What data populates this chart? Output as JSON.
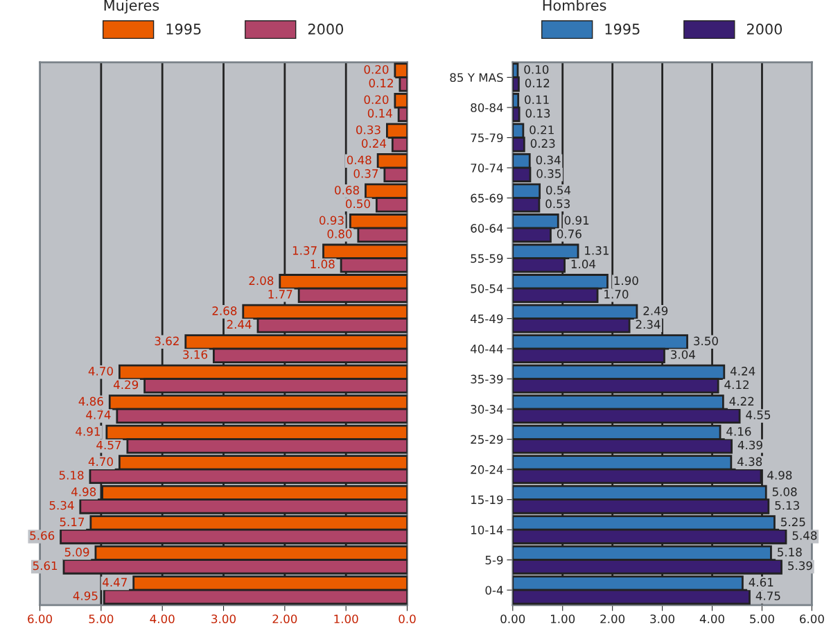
{
  "chart_data": [
    {
      "type": "bar",
      "orientation": "horizontal",
      "legend_title": "Mujeres",
      "legend": "top",
      "grid": "x",
      "tick_labels": "x",
      "categories": [
        null,
        null,
        null,
        null,
        null,
        null,
        null,
        null,
        null,
        null,
        null,
        null,
        null,
        null,
        null,
        null,
        null,
        null
      ],
      "xlim": [
        6,
        0
      ],
      "xticks": [
        {
          "value": 6,
          "label": "6.00"
        },
        {
          "value": 5,
          "label": "5.00"
        },
        {
          "value": 4,
          "label": "4.00"
        },
        {
          "value": 3,
          "label": "3.00"
        },
        {
          "value": 2,
          "label": "2.00"
        },
        {
          "value": 1,
          "label": "1.00"
        },
        {
          "value": 0,
          "label": "0.0"
        }
      ],
      "series": [
        {
          "name": "1995",
          "color": "#ea5c00",
          "values": [
            0.2,
            0.2,
            0.33,
            0.48,
            0.68,
            0.93,
            1.37,
            2.08,
            2.68,
            3.62,
            4.7,
            4.86,
            4.91,
            4.7,
            4.98,
            5.17,
            5.09,
            4.47
          ],
          "value_labels": [
            "0.20",
            "0.20",
            "0.33",
            "0.48",
            "0.68",
            "0.93",
            "1.37",
            "2.08",
            "2.68",
            "3.62",
            "4.70",
            "4.86",
            "4.91",
            "4.70",
            "4.98",
            "5.17",
            "5.09",
            "4.47"
          ]
        },
        {
          "name": "2000",
          "color": "#b04468",
          "values": [
            0.12,
            0.14,
            0.24,
            0.37,
            0.5,
            0.8,
            1.08,
            1.77,
            2.44,
            3.16,
            4.29,
            4.74,
            4.57,
            5.18,
            5.34,
            5.66,
            5.61,
            4.95
          ],
          "value_labels": [
            "0.12",
            "0.14",
            "0.24",
            "0.37",
            "0.50",
            "0.80",
            "1.08",
            "1.77",
            "2.44",
            "3.16",
            "4.29",
            "4.74",
            "4.57",
            "5.18",
            "5.34",
            "5.66",
            "5.61",
            "4.95"
          ]
        }
      ]
    },
    {
      "type": "bar",
      "orientation": "horizontal",
      "legend_title": "Hombres",
      "legend": "top",
      "grid": "x",
      "categories": [
        "85 Y MAS",
        "80-84",
        "75-79",
        "70-74",
        "65-69",
        "60-64",
        "55-59",
        "50-54",
        "45-49",
        "40-44",
        "35-39",
        "30-34",
        "25-29",
        "20-24",
        "15-19",
        "10-14",
        "5-9",
        "0-4"
      ],
      "xlim": [
        0,
        6
      ],
      "xticks": [
        {
          "value": 0,
          "label": "0.00"
        },
        {
          "value": 1,
          "label": "1.00"
        },
        {
          "value": 2,
          "label": "2.00"
        },
        {
          "value": 3,
          "label": "3.00"
        },
        {
          "value": 4,
          "label": "4.00"
        },
        {
          "value": 5,
          "label": "5.00"
        },
        {
          "value": 6,
          "label": "6.00"
        }
      ],
      "series": [
        {
          "name": "1995",
          "color": "#3377b5",
          "values": [
            0.1,
            0.11,
            0.21,
            0.34,
            0.54,
            0.91,
            1.31,
            1.9,
            2.49,
            3.5,
            4.24,
            4.22,
            4.16,
            4.38,
            5.08,
            5.25,
            5.18,
            4.61
          ],
          "value_labels": [
            "0.10",
            "0.11",
            "0.21",
            "0.34",
            "0.54",
            "0.91",
            "1.31",
            "1.90",
            "2.49",
            "3.50",
            "4.24",
            "4.22",
            "4.16",
            "4.38",
            "5.08",
            "5.25",
            "5.18",
            "4.61"
          ]
        },
        {
          "name": "2000",
          "color": "#3a1e72",
          "values": [
            0.12,
            0.13,
            0.23,
            0.35,
            0.53,
            0.76,
            1.04,
            1.7,
            2.34,
            3.04,
            4.12,
            4.55,
            4.39,
            4.98,
            5.13,
            5.48,
            5.39,
            4.75
          ],
          "value_labels": [
            "0.12",
            "0.13",
            "0.23",
            "0.35",
            "0.53",
            "0.76",
            "1.04",
            "1.70",
            "2.34",
            "3.04",
            "4.12",
            "4.55",
            "4.39",
            "4.98",
            "5.13",
            "5.48",
            "5.39",
            "4.75"
          ]
        }
      ]
    }
  ]
}
